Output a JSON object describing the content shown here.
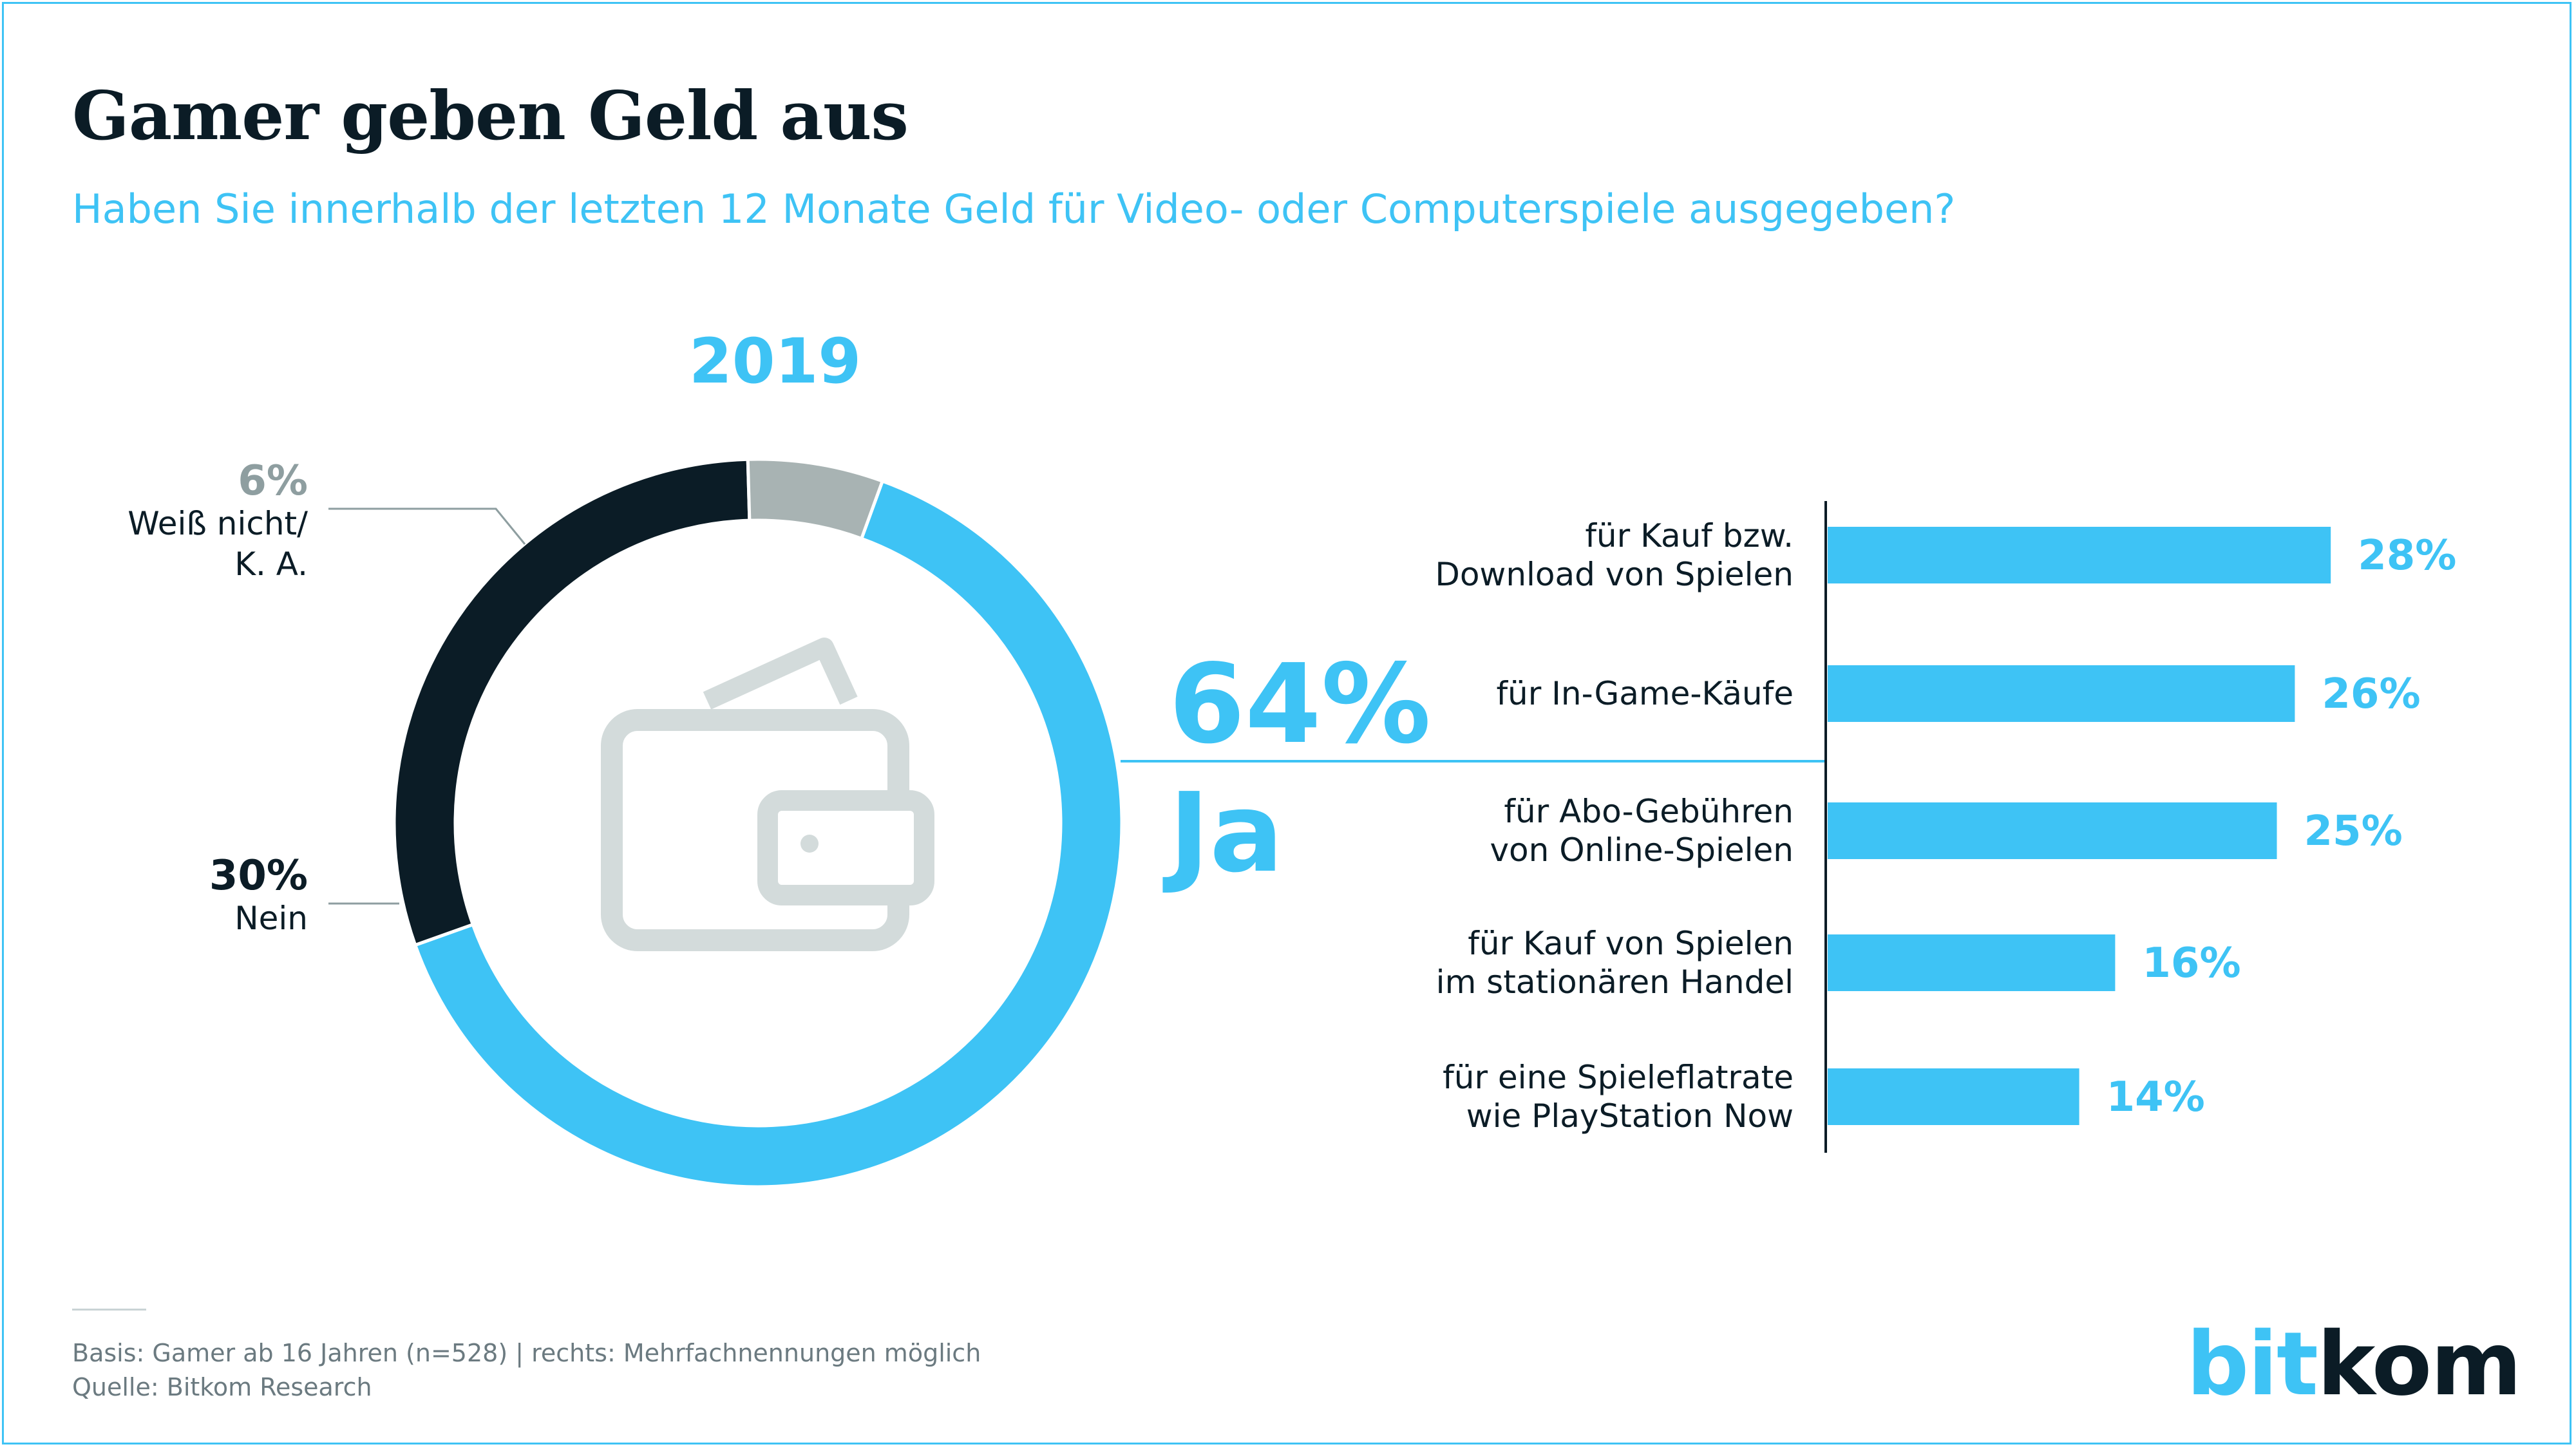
{
  "title": "Gamer geben Geld aus",
  "subtitle": "Haben Sie innerhalb der letzten 12 Monate Geld für Video- oder Computerspiele ausgegeben?",
  "year": "2019",
  "donut": {
    "ja": {
      "value_label": "64%",
      "label": "Ja"
    },
    "nein": {
      "value_label": "30%",
      "label": "Nein"
    },
    "weiss_nicht": {
      "value_label": "6%",
      "label_line1": "Weiß nicht/",
      "label_line2": "K. A."
    }
  },
  "colors": {
    "accent": "#3ec3f5",
    "dark": "#0b1c26",
    "gray": "#a8b3b3",
    "icon": "#d3dbdb"
  },
  "icons": {
    "center": "wallet-icon"
  },
  "footer": {
    "basis": "Basis: Gamer ab 16 Jahren (n=528) | rechts: Mehrfachnennungen möglich",
    "source": "Quelle: Bitkom Research"
  },
  "logo": {
    "part1": "bit",
    "part2": "kom"
  },
  "chart_data": [
    {
      "type": "pie",
      "title": "2019",
      "slices": [
        {
          "label": "Ja",
          "value": 64
        },
        {
          "label": "Nein",
          "value": 30
        },
        {
          "label": "Weiß nicht/ K. A.",
          "value": 6
        }
      ]
    },
    {
      "type": "bar",
      "categories": [
        [
          "für Kauf bzw.",
          "Download von Spielen"
        ],
        [
          "für In-Game-Käufe"
        ],
        [
          "für Abo-Gebühren",
          "von Online-Spielen"
        ],
        [
          "für Kauf von Spielen",
          "im stationären Handel"
        ],
        [
          "für eine Spieleflatrate",
          "wie PlayStation Now"
        ]
      ],
      "values": [
        28,
        26,
        25,
        16,
        14
      ],
      "value_labels": [
        "28%",
        "26%",
        "25%",
        "16%",
        "14%"
      ]
    }
  ]
}
